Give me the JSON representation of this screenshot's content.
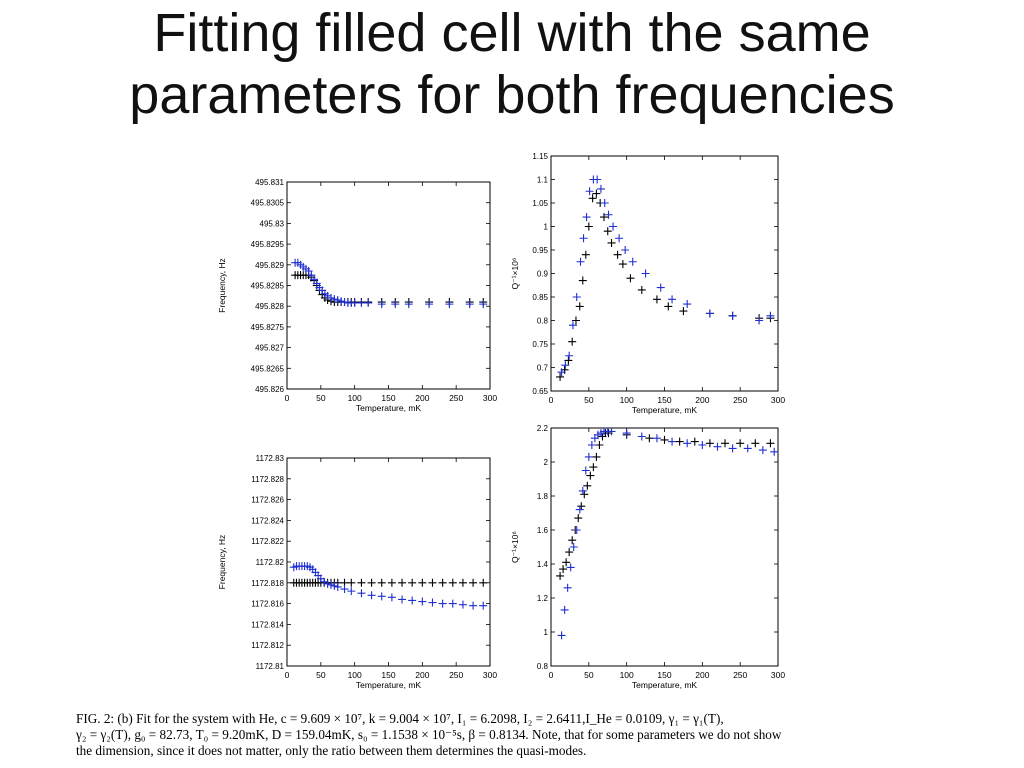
{
  "slide": {
    "title_line1": "Fitting filled cell with the same",
    "title_line2": "parameters for both frequencies"
  },
  "caption": {
    "line1": "FIG. 2:    (b) Fit for the system with He, c = 9.609 × 10⁷, k = 9.004 × 10⁷, I₁ = 6.2098, I₂ = 2.6411,I_He = 0.0109, γ₁ = γ₁(T),",
    "line2": "γ₂ = γ₂(T), g₀ = 82.73, T₀ = 9.20mK, D = 159.04mK, s₀ = 1.1538 × 10⁻⁵s, β = 0.8134. Note, that for some parameters we do not show",
    "line3": "the dimension, since it does not matter, only the ratio between them determines the quasi-modes."
  },
  "colors": {
    "series_a": "#000000",
    "series_b": "#1f2fd0"
  },
  "chart_data": [
    {
      "type": "scatter",
      "xlabel": "Temperature, mK",
      "ylabel": "Frequency, Hz",
      "xlim": [
        0,
        300
      ],
      "ylim": [
        495.826,
        495.831
      ],
      "xticks": [
        0,
        50,
        100,
        150,
        200,
        250,
        300
      ],
      "yticks": [
        "495.826",
        "495.8265",
        "495.827",
        "495.8275",
        "495.828",
        "495.8285",
        "495.829",
        "495.8295",
        "495.83",
        "495.8305",
        "495.831"
      ],
      "series": [
        {
          "marker": "+",
          "color": "#000000",
          "x": [
            12,
            16,
            20,
            24,
            28,
            32,
            36,
            40,
            44,
            48,
            52,
            56,
            60,
            65,
            70,
            75,
            80,
            85,
            90,
            95,
            100,
            110,
            120,
            140,
            160,
            180,
            210,
            240,
            270,
            290
          ],
          "y": [
            495.82875,
            495.82875,
            495.82875,
            495.82875,
            495.82875,
            495.82875,
            495.8287,
            495.82862,
            495.8285,
            495.82838,
            495.82828,
            495.8282,
            495.82815,
            495.82812,
            495.8281,
            495.8281,
            495.8281,
            495.8281,
            495.8281,
            495.8281,
            495.8281,
            495.8281,
            495.8281,
            495.8281,
            495.8281,
            495.8281,
            495.8281,
            495.8281,
            495.8281,
            495.8281
          ]
        },
        {
          "marker": "+",
          "color": "#1f2fd0",
          "x": [
            12,
            16,
            20,
            24,
            28,
            32,
            36,
            40,
            44,
            48,
            52,
            56,
            60,
            65,
            70,
            75,
            80,
            85,
            90,
            95,
            100,
            110,
            120,
            140,
            160,
            180,
            210,
            240,
            270,
            290
          ],
          "y": [
            495.82905,
            495.82905,
            495.829,
            495.82895,
            495.8289,
            495.82885,
            495.82875,
            495.82865,
            495.82855,
            495.82845,
            495.82838,
            495.8283,
            495.82825,
            495.8282,
            495.82817,
            495.82815,
            495.82812,
            495.8281,
            495.82808,
            495.82808,
            495.82808,
            495.82808,
            495.82808,
            495.82805,
            495.82805,
            495.82805,
            495.82805,
            495.82805,
            495.82805,
            495.82805
          ]
        }
      ]
    },
    {
      "type": "scatter",
      "xlabel": "Temperature, mK",
      "ylabel": "Q⁻¹×10⁶",
      "xlim": [
        0,
        300
      ],
      "ylim": [
        0.65,
        1.15
      ],
      "xticks": [
        0,
        50,
        100,
        150,
        200,
        250,
        300
      ],
      "yticks": [
        "0.65",
        "0.7",
        "0.75",
        "0.8",
        "0.85",
        "0.9",
        "0.95",
        "1",
        "1.05",
        "1.1",
        "1.15"
      ],
      "series": [
        {
          "marker": "+",
          "color": "#000000",
          "x": [
            12,
            18,
            23,
            28,
            33,
            38,
            42,
            46,
            50,
            55,
            60,
            65,
            70,
            75,
            80,
            88,
            95,
            105,
            120,
            140,
            155,
            175,
            210,
            240,
            275,
            290
          ],
          "y": [
            0.68,
            0.695,
            0.715,
            0.755,
            0.8,
            0.83,
            0.885,
            0.94,
            1.0,
            1.06,
            1.07,
            1.05,
            1.02,
            0.99,
            0.965,
            0.94,
            0.92,
            0.89,
            0.865,
            0.845,
            0.83,
            0.82,
            0.815,
            0.81,
            0.805,
            0.805
          ]
        },
        {
          "marker": "+",
          "color": "#1f2fd0",
          "x": [
            14,
            19,
            24,
            29,
            34,
            39,
            43,
            47,
            51,
            56,
            61,
            66,
            71,
            76,
            82,
            90,
            98,
            108,
            125,
            145,
            160,
            180,
            210,
            240,
            275,
            290
          ],
          "y": [
            0.69,
            0.705,
            0.725,
            0.79,
            0.85,
            0.925,
            0.975,
            1.02,
            1.075,
            1.1,
            1.1,
            1.08,
            1.05,
            1.025,
            1.0,
            0.975,
            0.95,
            0.925,
            0.9,
            0.87,
            0.845,
            0.835,
            0.815,
            0.81,
            0.8,
            0.81
          ]
        }
      ]
    },
    {
      "type": "scatter",
      "xlabel": "Temperature, mK",
      "ylabel": "Frequency, Hz",
      "xlim": [
        0,
        300
      ],
      "ylim": [
        1172.81,
        1172.83
      ],
      "xticks": [
        0,
        50,
        100,
        150,
        200,
        250,
        300
      ],
      "yticks": [
        "1172.81",
        "1172.812",
        "1172.814",
        "1172.816",
        "1172.818",
        "1172.82",
        "1172.822",
        "1172.824",
        "1172.826",
        "1172.828",
        "1172.83"
      ],
      "series": [
        {
          "marker": "+",
          "color": "#000000",
          "x": [
            10,
            14,
            18,
            22,
            26,
            30,
            34,
            38,
            42,
            46,
            50,
            55,
            60,
            65,
            70,
            75,
            85,
            95,
            110,
            125,
            140,
            155,
            170,
            185,
            200,
            215,
            230,
            245,
            260,
            275,
            290
          ],
          "y": [
            1172.818,
            1172.818,
            1172.818,
            1172.818,
            1172.818,
            1172.818,
            1172.818,
            1172.818,
            1172.818,
            1172.818,
            1172.818,
            1172.818,
            1172.818,
            1172.818,
            1172.818,
            1172.818,
            1172.818,
            1172.818,
            1172.818,
            1172.818,
            1172.818,
            1172.818,
            1172.818,
            1172.818,
            1172.818,
            1172.818,
            1172.818,
            1172.818,
            1172.818,
            1172.818,
            1172.818
          ]
        },
        {
          "marker": "+",
          "color": "#1f2fd0",
          "x": [
            10,
            14,
            18,
            22,
            26,
            30,
            34,
            38,
            42,
            46,
            50,
            55,
            60,
            65,
            70,
            75,
            85,
            95,
            110,
            125,
            140,
            155,
            170,
            185,
            200,
            215,
            230,
            245,
            260,
            275,
            290
          ],
          "y": [
            1172.8195,
            1172.8196,
            1172.8196,
            1172.8196,
            1172.8196,
            1172.8196,
            1172.8195,
            1172.8193,
            1172.819,
            1172.8187,
            1172.8184,
            1172.8181,
            1172.8179,
            1172.8178,
            1172.8177,
            1172.8176,
            1172.8174,
            1172.8172,
            1172.817,
            1172.8168,
            1172.8167,
            1172.8166,
            1172.8164,
            1172.8163,
            1172.8162,
            1172.8161,
            1172.816,
            1172.816,
            1172.8159,
            1172.8158,
            1172.8158
          ]
        }
      ]
    },
    {
      "type": "scatter",
      "xlabel": "Temperature, mK",
      "ylabel": "Q⁻¹×10⁶",
      "xlim": [
        0,
        300
      ],
      "ylim": [
        0.8,
        2.2
      ],
      "xticks": [
        0,
        50,
        100,
        150,
        200,
        250,
        300
      ],
      "yticks": [
        "0.8",
        "1",
        "1.2",
        "1.4",
        "1.6",
        "1.8",
        "2",
        "2.2"
      ],
      "series": [
        {
          "marker": "+",
          "color": "#000000",
          "x": [
            12,
            16,
            20,
            24,
            28,
            32,
            36,
            40,
            44,
            48,
            52,
            56,
            60,
            64,
            68,
            72,
            76,
            100,
            130,
            150,
            170,
            190,
            210,
            230,
            250,
            270,
            290
          ],
          "y": [
            1.33,
            1.37,
            1.41,
            1.47,
            1.54,
            1.6,
            1.67,
            1.74,
            1.81,
            1.86,
            1.92,
            1.97,
            2.03,
            2.1,
            2.15,
            2.17,
            2.17,
            2.16,
            2.14,
            2.13,
            2.12,
            2.12,
            2.11,
            2.11,
            2.11,
            2.11,
            2.11
          ]
        },
        {
          "marker": "+",
          "color": "#1f2fd0",
          "x": [
            14,
            18,
            22,
            26,
            30,
            34,
            38,
            42,
            46,
            50,
            54,
            58,
            62,
            66,
            70,
            75,
            80,
            100,
            120,
            140,
            160,
            180,
            200,
            220,
            240,
            260,
            280,
            295
          ],
          "y": [
            0.98,
            1.13,
            1.26,
            1.38,
            1.5,
            1.6,
            1.72,
            1.83,
            1.95,
            2.03,
            2.1,
            2.14,
            2.16,
            2.17,
            2.18,
            2.18,
            2.18,
            2.17,
            2.15,
            2.14,
            2.12,
            2.11,
            2.1,
            2.09,
            2.08,
            2.08,
            2.07,
            2.06
          ]
        }
      ]
    }
  ]
}
